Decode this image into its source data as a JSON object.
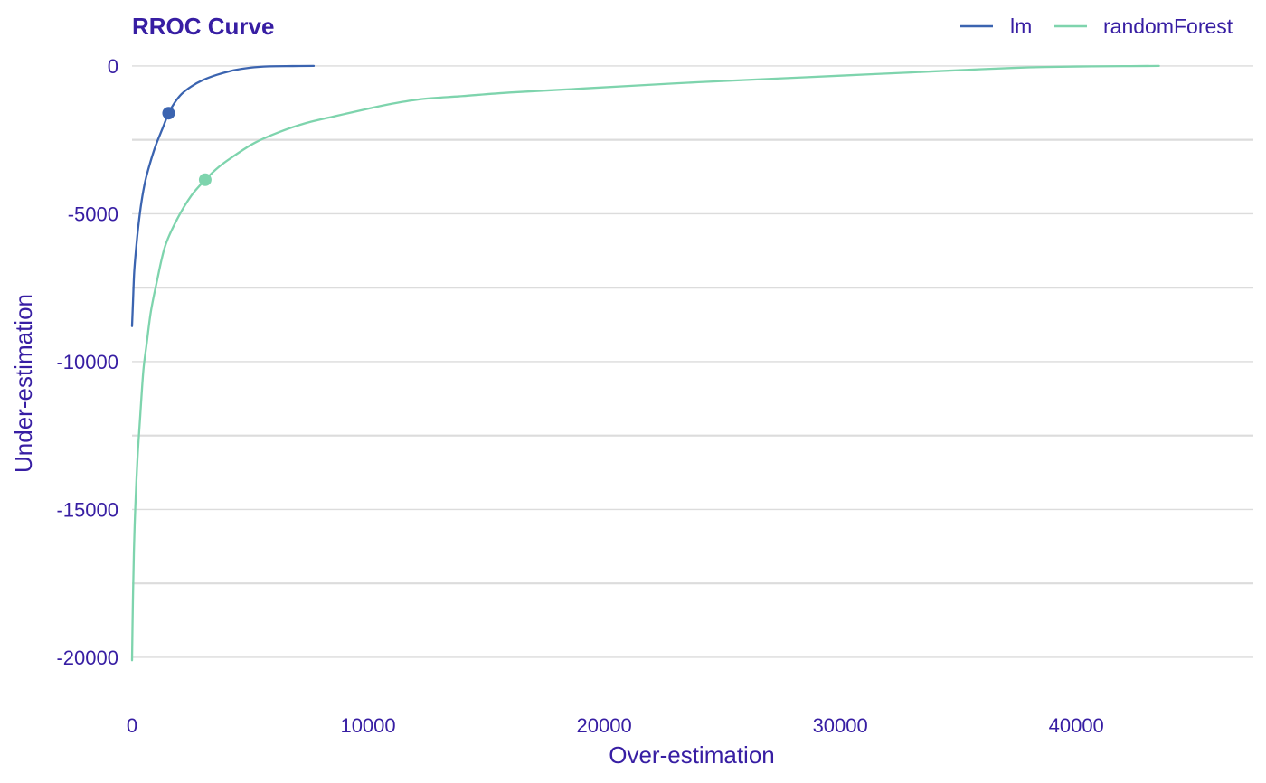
{
  "chart_data": {
    "type": "line",
    "title": "RROC Curve",
    "xlabel": "Over-estimation",
    "ylabel": "Under-estimation",
    "xlim": [
      0,
      47500
    ],
    "ylim": [
      -21500,
      700
    ],
    "x_ticks": [
      0,
      10000,
      20000,
      30000,
      40000
    ],
    "y_ticks": [
      0,
      -5000,
      -10000,
      -15000,
      -20000
    ],
    "x_tick_labels": [
      "0",
      "10000",
      "20000",
      "30000",
      "40000"
    ],
    "y_tick_labels": [
      "0",
      "-5000",
      "-10000",
      "-15000",
      "-20000"
    ],
    "grid": "horizontal",
    "legend_position": "top-right",
    "series": [
      {
        "name": "lm",
        "color": "#3b64b0",
        "points": [
          [
            0,
            -8800
          ],
          [
            40,
            -8000
          ],
          [
            90,
            -7000
          ],
          [
            170,
            -6200
          ],
          [
            270,
            -5400
          ],
          [
            400,
            -4600
          ],
          [
            560,
            -3900
          ],
          [
            760,
            -3300
          ],
          [
            1000,
            -2700
          ],
          [
            1300,
            -2100
          ],
          [
            1550,
            -1600
          ],
          [
            1800,
            -1250
          ],
          [
            2100,
            -950
          ],
          [
            2500,
            -700
          ],
          [
            3000,
            -480
          ],
          [
            3600,
            -300
          ],
          [
            4300,
            -150
          ],
          [
            5000,
            -60
          ],
          [
            5800,
            -15
          ],
          [
            6800,
            -5
          ],
          [
            7700,
            0
          ]
        ],
        "marker": [
          1550,
          -1600
        ]
      },
      {
        "name": "randomForest",
        "color": "#7ed4ad",
        "points": [
          [
            0,
            -20100
          ],
          [
            35,
            -18200
          ],
          [
            80,
            -16400
          ],
          [
            140,
            -14900
          ],
          [
            230,
            -13300
          ],
          [
            350,
            -11800
          ],
          [
            480,
            -10300
          ],
          [
            620,
            -9400
          ],
          [
            800,
            -8300
          ],
          [
            1050,
            -7300
          ],
          [
            1400,
            -6100
          ],
          [
            1900,
            -5200
          ],
          [
            2500,
            -4400
          ],
          [
            3100,
            -3850
          ],
          [
            3700,
            -3400
          ],
          [
            4400,
            -3000
          ],
          [
            5200,
            -2600
          ],
          [
            6200,
            -2250
          ],
          [
            7300,
            -1950
          ],
          [
            8600,
            -1700
          ],
          [
            10000,
            -1450
          ],
          [
            11000,
            -1280
          ],
          [
            12300,
            -1120
          ],
          [
            14000,
            -1020
          ],
          [
            16000,
            -900
          ],
          [
            18500,
            -790
          ],
          [
            21000,
            -680
          ],
          [
            24000,
            -550
          ],
          [
            27000,
            -440
          ],
          [
            30000,
            -330
          ],
          [
            33000,
            -220
          ],
          [
            36000,
            -110
          ],
          [
            38000,
            -50
          ],
          [
            40000,
            -20
          ],
          [
            42000,
            -8
          ],
          [
            43500,
            0
          ]
        ],
        "marker": [
          3100,
          -3850
        ]
      }
    ]
  },
  "colors": {
    "text": "#371ea3",
    "grid": "#dcdcdc"
  }
}
